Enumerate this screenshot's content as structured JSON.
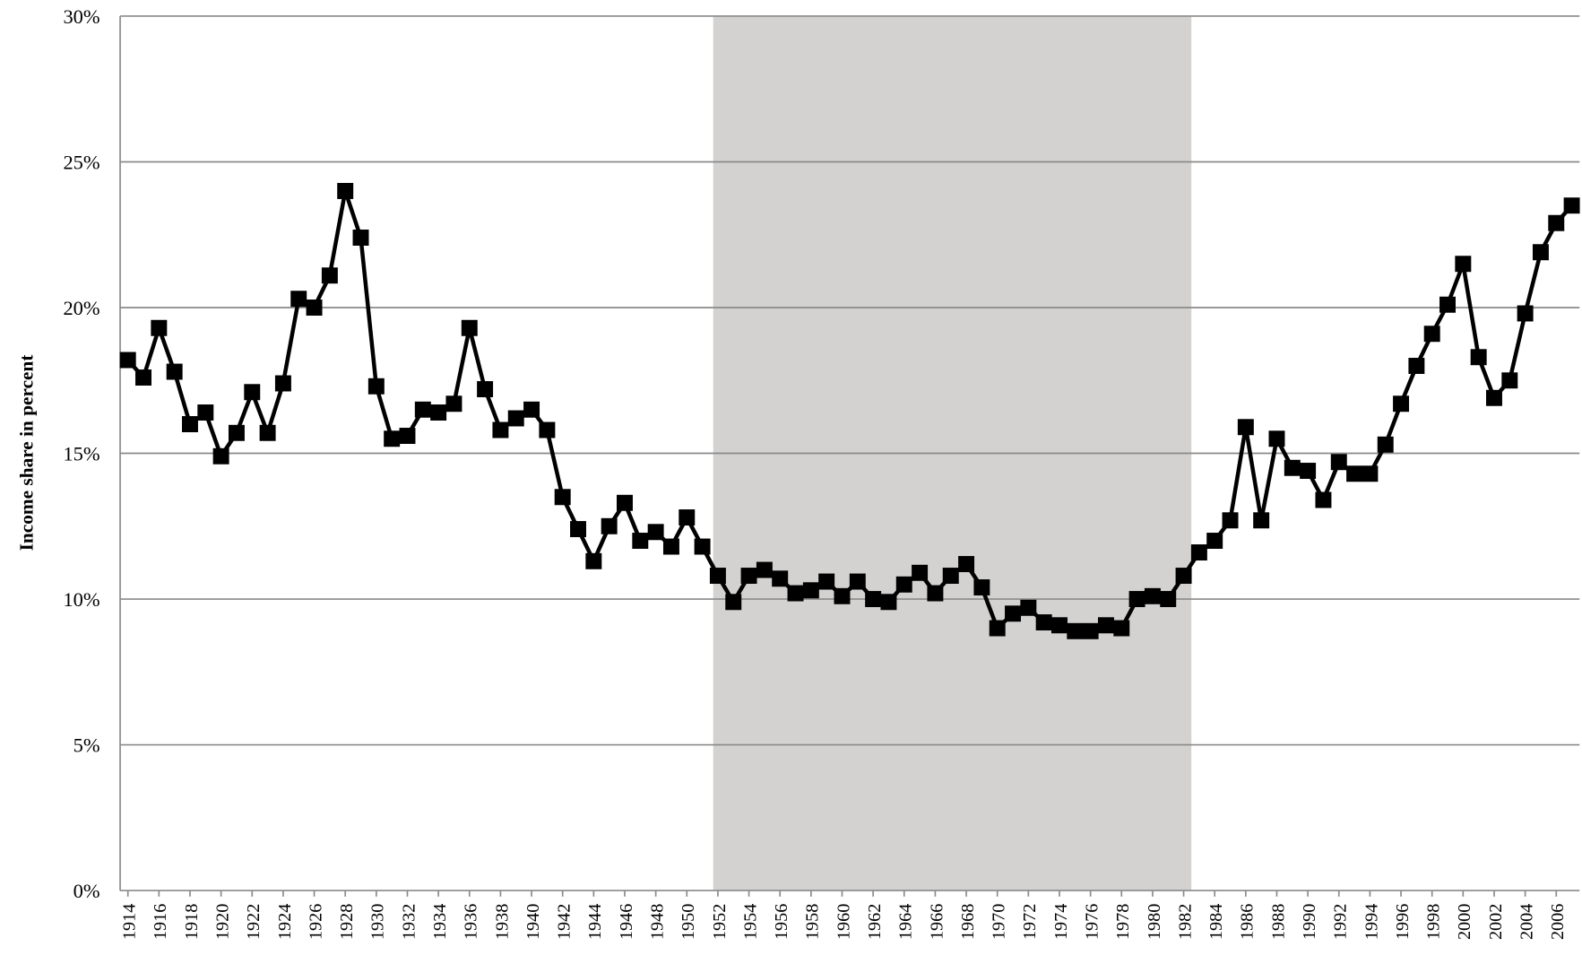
{
  "chart_data": {
    "type": "line",
    "y_label": "Income share in percent",
    "x": [
      1914,
      1915,
      1916,
      1917,
      1918,
      1919,
      1920,
      1921,
      1922,
      1923,
      1924,
      1925,
      1926,
      1927,
      1928,
      1929,
      1930,
      1931,
      1932,
      1933,
      1934,
      1935,
      1936,
      1937,
      1938,
      1939,
      1940,
      1941,
      1942,
      1943,
      1944,
      1945,
      1946,
      1947,
      1948,
      1949,
      1950,
      1951,
      1952,
      1953,
      1954,
      1955,
      1956,
      1957,
      1958,
      1959,
      1960,
      1961,
      1962,
      1963,
      1964,
      1965,
      1966,
      1967,
      1968,
      1969,
      1970,
      1971,
      1972,
      1973,
      1974,
      1975,
      1976,
      1977,
      1978,
      1979,
      1980,
      1981,
      1982,
      1983,
      1984,
      1985,
      1986,
      1987,
      1988,
      1989,
      1990,
      1991,
      1992,
      1993,
      1994,
      1995,
      1996,
      1997,
      1998,
      1999,
      2000,
      2001,
      2002,
      2003,
      2004,
      2005,
      2006,
      2007
    ],
    "values": [
      18.2,
      17.6,
      19.3,
      17.8,
      16.0,
      16.4,
      14.9,
      15.7,
      17.1,
      15.7,
      17.4,
      20.3,
      20.0,
      21.1,
      24.0,
      22.4,
      17.3,
      15.5,
      15.6,
      16.5,
      16.4,
      16.7,
      19.3,
      17.2,
      15.8,
      16.2,
      16.5,
      15.8,
      13.5,
      12.4,
      11.3,
      12.5,
      13.3,
      12.0,
      12.3,
      11.8,
      12.8,
      11.8,
      10.8,
      9.9,
      10.8,
      11.0,
      10.7,
      10.2,
      10.3,
      10.6,
      10.1,
      10.6,
      10.0,
      9.9,
      10.5,
      10.9,
      10.2,
      10.8,
      11.2,
      10.4,
      9.0,
      9.5,
      9.7,
      9.2,
      9.1,
      8.9,
      8.9,
      9.1,
      9.0,
      10.0,
      10.1,
      10.0,
      10.8,
      11.6,
      12.0,
      12.7,
      15.9,
      12.7,
      15.5,
      14.5,
      14.4,
      13.4,
      14.7,
      14.3,
      14.3,
      15.3,
      16.7,
      18.0,
      19.1,
      20.1,
      21.5,
      18.3,
      16.9,
      17.5,
      19.8,
      21.9,
      22.9,
      23.5
    ],
    "color": "#000000",
    "shade": [
      1951.7,
      1982.5
    ],
    "shade_color": "#d3d2d0",
    "xlim": [
      1913.5,
      2007.5
    ],
    "xticks": [
      1914,
      1916,
      1918,
      1920,
      1922,
      1924,
      1926,
      1928,
      1930,
      1932,
      1934,
      1936,
      1938,
      1940,
      1942,
      1944,
      1946,
      1948,
      1950,
      1952,
      1954,
      1956,
      1958,
      1960,
      1962,
      1964,
      1966,
      1968,
      1970,
      1972,
      1974,
      1976,
      1978,
      1980,
      1982,
      1984,
      1986,
      1988,
      1990,
      1992,
      1994,
      1996,
      1998,
      2000,
      2002,
      2004,
      2006
    ],
    "ylim": [
      0,
      30
    ],
    "yticks": [
      {
        "value": 0,
        "label": "0%"
      },
      {
        "value": 5,
        "label": "5%"
      },
      {
        "value": 10,
        "label": "10%"
      },
      {
        "value": 15,
        "label": "15%"
      },
      {
        "value": 20,
        "label": "20%"
      },
      {
        "value": 25,
        "label": "25%"
      },
      {
        "value": 30,
        "label": "30%"
      }
    ],
    "grid": true
  }
}
